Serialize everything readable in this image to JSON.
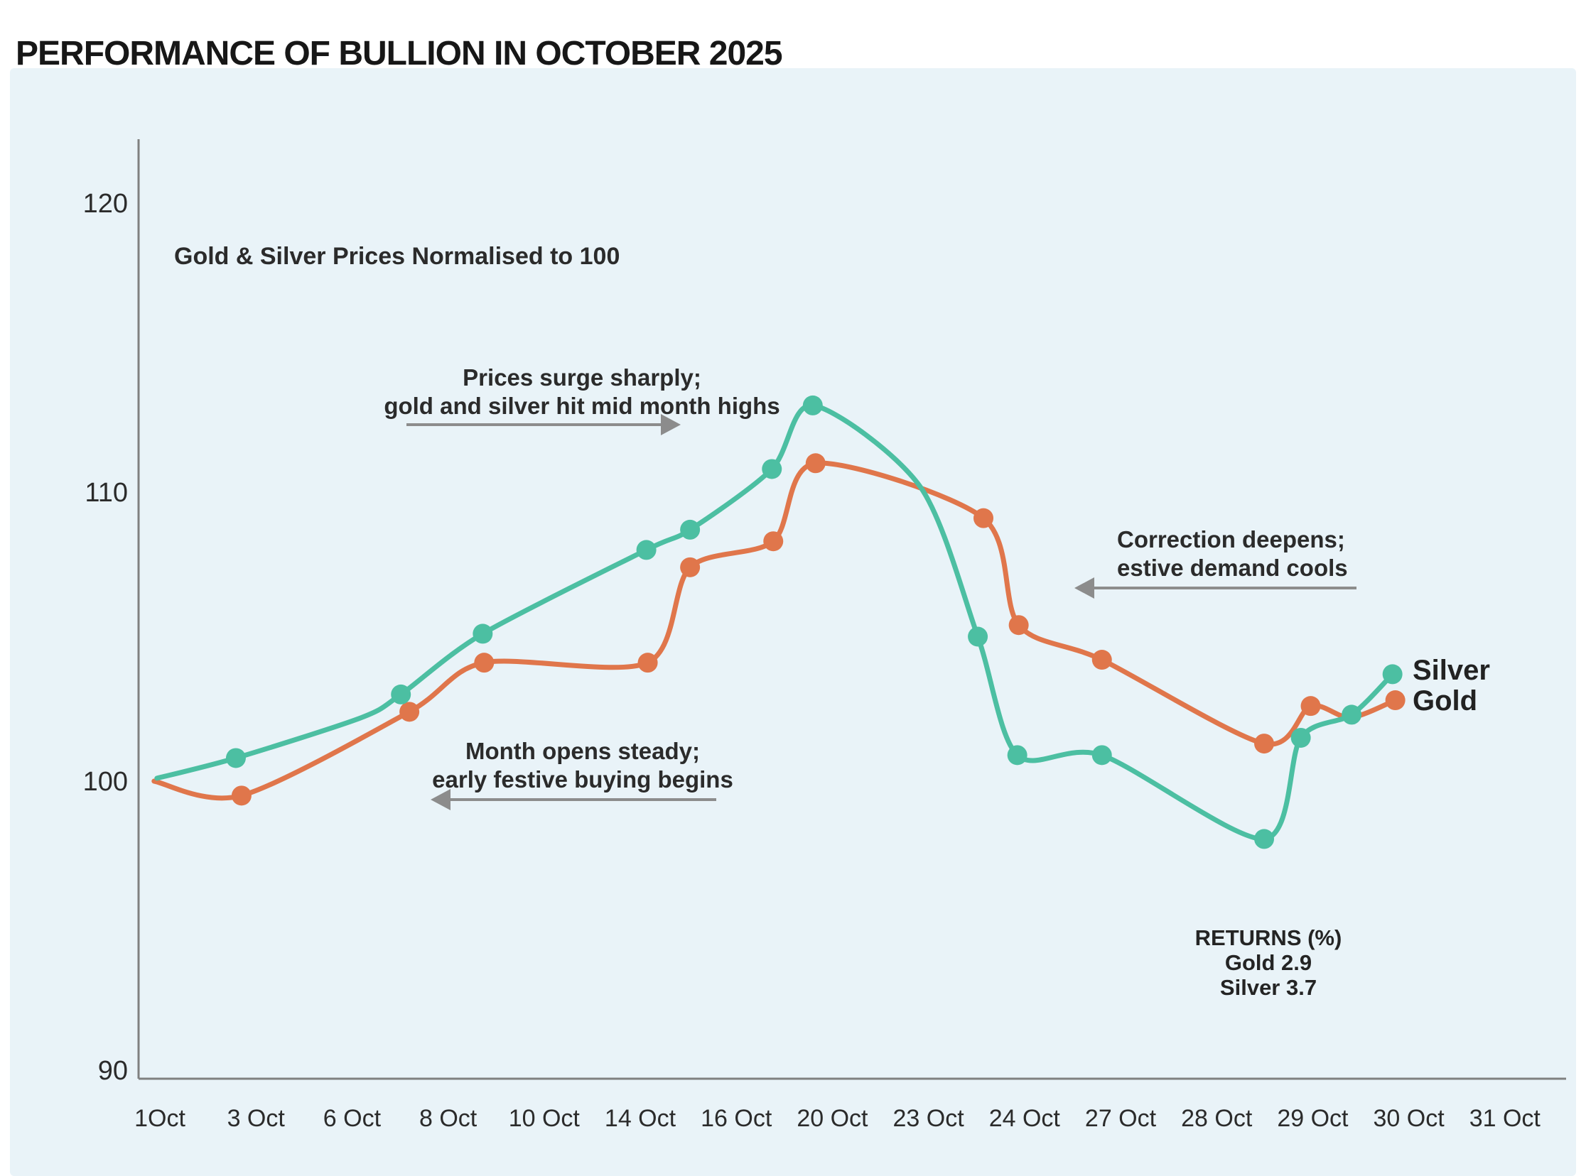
{
  "page": {
    "title": "PERFORMANCE OF BULLION IN OCTOBER 2025"
  },
  "chart": {
    "subtitle": "Gold & Silver Prices Normalised to 100",
    "annotations": {
      "surge": {
        "line1": "Prices surge sharply;",
        "line2": "gold and silver hit mid month highs"
      },
      "correction": {
        "line1": "Correction deepens;",
        "line2": "estive demand cools"
      },
      "open": {
        "line1": "Month opens steady;",
        "line2": "early festive buying begins"
      }
    },
    "returns": {
      "heading": "RETURNS (%)",
      "gold_line": "Gold 2.9",
      "silver_line": "Silver 3.7"
    },
    "series_labels": {
      "silver": "Silver",
      "gold": "Gold"
    }
  },
  "chart_data": {
    "type": "line",
    "title": "PERFORMANCE OF BULLION IN OCTOBER 2025",
    "subtitle": "Gold & Silver Prices Normalised to 100",
    "xlabel": "",
    "ylabel": "",
    "x_tick_labels": [
      "1Oct",
      "3 Oct",
      "6 Oct",
      "8 Oct",
      "10 Oct",
      "14 Oct",
      "16 Oct",
      "20 Oct",
      "23 Oct",
      "24 Oct",
      "27 Oct",
      "28 Oct",
      "29 Oct",
      "30 Oct",
      "31 Oct"
    ],
    "y_ticks": [
      120,
      110,
      100,
      90
    ],
    "ylim": [
      89.7,
      122.2
    ],
    "grid": false,
    "legend_position": "end-of-line-labels",
    "returns_pct": {
      "Gold": 2.9,
      "Silver": 3.7
    },
    "colors": {
      "silver": "#4CBFA2",
      "gold": "#E0764B",
      "panel_bg": "#E9F3F8",
      "axis": "#808080",
      "arrow": "#8C8C8C",
      "text": "#242424"
    },
    "series": [
      {
        "name": "Gold",
        "color": "#E0764B",
        "points": [
          {
            "x": 0.011,
            "v": 100.0,
            "dot": false
          },
          {
            "x": 0.073,
            "v": 99.5,
            "dot": true
          },
          {
            "x": 0.192,
            "v": 102.4,
            "dot": true
          },
          {
            "x": 0.245,
            "v": 104.1,
            "dot": true
          },
          {
            "x": 0.361,
            "v": 104.1,
            "dot": true
          },
          {
            "x": 0.391,
            "v": 107.4,
            "dot": true
          },
          {
            "x": 0.45,
            "v": 108.3,
            "dot": true
          },
          {
            "x": 0.48,
            "v": 111.0,
            "dot": true
          },
          {
            "x": 0.599,
            "v": 109.1,
            "dot": true
          },
          {
            "x": 0.624,
            "v": 105.4,
            "dot": true
          },
          {
            "x": 0.683,
            "v": 104.2,
            "dot": true
          },
          {
            "x": 0.798,
            "v": 101.3,
            "dot": true
          },
          {
            "x": 0.831,
            "v": 102.6,
            "dot": true
          },
          {
            "x": 0.859,
            "v": 102.2,
            "dot": false
          },
          {
            "x": 0.891,
            "v": 102.8,
            "dot": true
          }
        ]
      },
      {
        "name": "Silver",
        "color": "#4CBFA2",
        "points": [
          {
            "x": 0.013,
            "v": 100.1,
            "dot": false
          },
          {
            "x": 0.069,
            "v": 100.8,
            "dot": true
          },
          {
            "x": 0.158,
            "v": 102.2,
            "dot": false
          },
          {
            "x": 0.186,
            "v": 103.0,
            "dot": true
          },
          {
            "x": 0.244,
            "v": 105.1,
            "dot": true
          },
          {
            "x": 0.36,
            "v": 108.0,
            "dot": true
          },
          {
            "x": 0.391,
            "v": 108.7,
            "dot": true
          },
          {
            "x": 0.449,
            "v": 110.8,
            "dot": true
          },
          {
            "x": 0.478,
            "v": 113.0,
            "dot": true
          },
          {
            "x": 0.554,
            "v": 110.2,
            "dot": false
          },
          {
            "x": 0.595,
            "v": 105.0,
            "dot": true
          },
          {
            "x": 0.623,
            "v": 100.9,
            "dot": true
          },
          {
            "x": 0.683,
            "v": 100.9,
            "dot": true
          },
          {
            "x": 0.798,
            "v": 98.0,
            "dot": true
          },
          {
            "x": 0.824,
            "v": 101.5,
            "dot": true
          },
          {
            "x": 0.86,
            "v": 102.3,
            "dot": true
          },
          {
            "x": 0.889,
            "v": 103.7,
            "dot": true
          }
        ]
      }
    ]
  }
}
